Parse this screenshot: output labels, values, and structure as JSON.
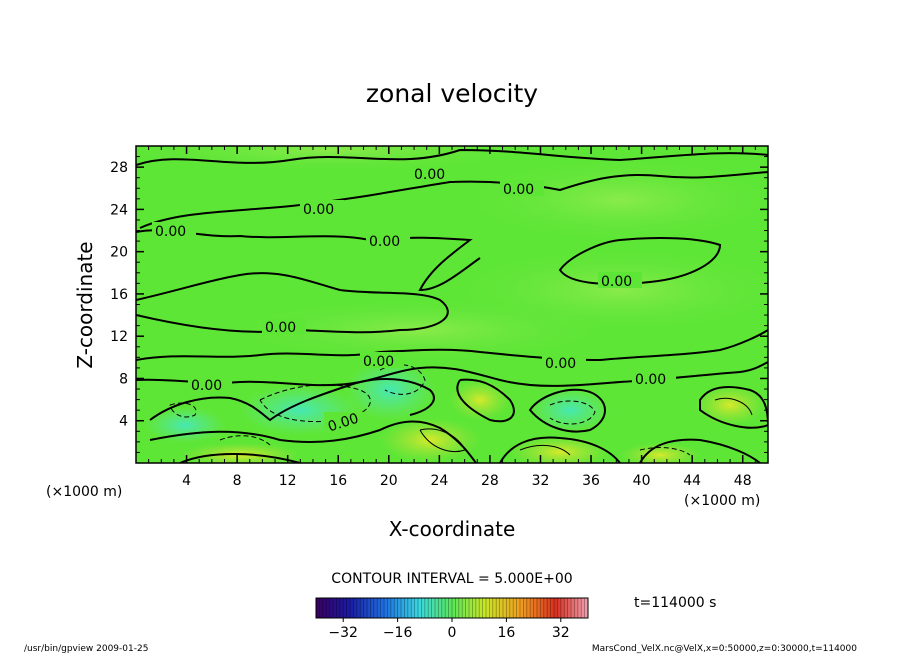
{
  "chart_data": {
    "type": "heatmap",
    "title": "zonal velocity",
    "xlabel": "X-coordinate",
    "ylabel": "Z-coordinate",
    "x_unit": "(×1000 m)",
    "y_unit": "(×1000 m)",
    "xlim": [
      0,
      50
    ],
    "ylim": [
      0,
      30
    ],
    "x_ticks": [
      4,
      8,
      12,
      16,
      20,
      24,
      28,
      32,
      36,
      40,
      44,
      48
    ],
    "y_ticks": [
      4,
      8,
      12,
      16,
      20,
      24,
      28
    ],
    "contour_labels": [
      "0.00",
      "0.00",
      "0.00",
      "0.00",
      "0.00",
      "0.00",
      "0.00",
      "0.00",
      "0.00",
      "0.00",
      "0.00",
      "0.00"
    ],
    "contour_interval_text": "CONTOUR INTERVAL = 5.000E+00",
    "colorbar": {
      "range": [
        -40,
        40
      ],
      "ticks": [
        "−32",
        "−16",
        "0",
        "16",
        "32"
      ]
    },
    "time_label": "t=114000 s",
    "footer_left": "/usr/bin/gpview   2009-01-25",
    "footer_right": "MarsCond_VelX.nc@VelX,x=0:50000,z=0:30000,t=114000"
  }
}
